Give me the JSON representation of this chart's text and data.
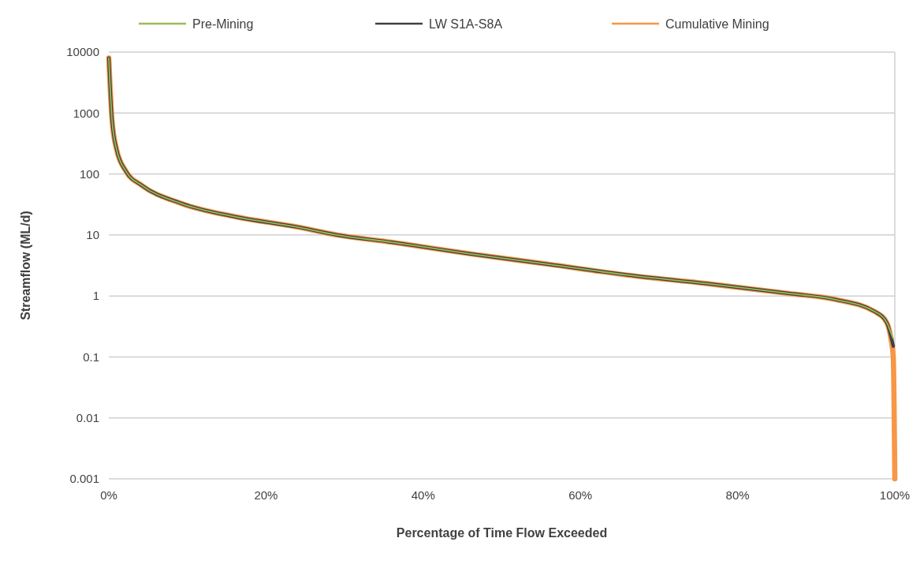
{
  "chart_data": {
    "type": "line",
    "xlabel": "Percentage of Time Flow Exceeded",
    "ylabel": "Streamflow (ML/d)",
    "log": "y",
    "grid": "y",
    "legend": "top",
    "line_style": "solid",
    "marker": "none",
    "xlim": [
      0,
      100
    ],
    "xticks": [
      {
        "value": 0,
        "label": "0%"
      },
      {
        "value": 20,
        "label": "20%"
      },
      {
        "value": 40,
        "label": "40%"
      },
      {
        "value": 60,
        "label": "60%"
      },
      {
        "value": 80,
        "label": "80%"
      },
      {
        "value": 100,
        "label": "100%"
      }
    ],
    "ylim": [
      0.001,
      10000
    ],
    "yticks": [
      {
        "value": 0.001,
        "label": "0.001"
      },
      {
        "value": 0.01,
        "label": "0.01"
      },
      {
        "value": 0.1,
        "label": "0.1"
      },
      1,
      10,
      100,
      1000,
      10000
    ],
    "series": [
      {
        "name": "Pre-Mining",
        "color": "#9bbb59",
        "x": [
          0,
          0.4,
          1,
          2.2,
          4.2,
          9.2,
          16,
          24,
          29,
          36,
          46,
          56,
          66,
          76,
          86.5,
          92.5,
          97.5,
          99,
          99.5,
          99.8
        ],
        "values": [
          8000,
          800,
          250,
          110,
          65,
          33,
          20,
          13.5,
          10,
          7.6,
          4.9,
          3.3,
          2.2,
          1.6,
          1.1,
          0.87,
          0.55,
          0.36,
          0.25,
          0.2
        ]
      },
      {
        "name": "LW S1A-S8A",
        "color": "#404040",
        "x": [
          0,
          0.4,
          1,
          2.2,
          4.2,
          9.2,
          16,
          24,
          29,
          36,
          46,
          56,
          66,
          76,
          86.5,
          92.5,
          97.5,
          99,
          99.5,
          99.8
        ],
        "values": [
          8000,
          800,
          250,
          110,
          65,
          33,
          20,
          13.5,
          10,
          7.6,
          4.9,
          3.3,
          2.2,
          1.6,
          1.1,
          0.87,
          0.55,
          0.36,
          0.22,
          0.15
        ]
      },
      {
        "name": "Cumulative Mining",
        "color": "#f79646",
        "x": [
          0,
          0.4,
          1,
          2.2,
          4.2,
          9.2,
          16,
          24,
          29,
          36,
          46,
          56,
          66,
          76,
          86.5,
          92.5,
          97.5,
          99,
          99.5,
          99.8,
          100
        ],
        "values": [
          8000,
          800,
          250,
          110,
          65,
          33,
          20,
          13.5,
          10,
          7.6,
          4.9,
          3.3,
          2.2,
          1.6,
          1.1,
          0.87,
          0.55,
          0.36,
          0.2,
          0.1,
          0.001
        ]
      }
    ]
  }
}
